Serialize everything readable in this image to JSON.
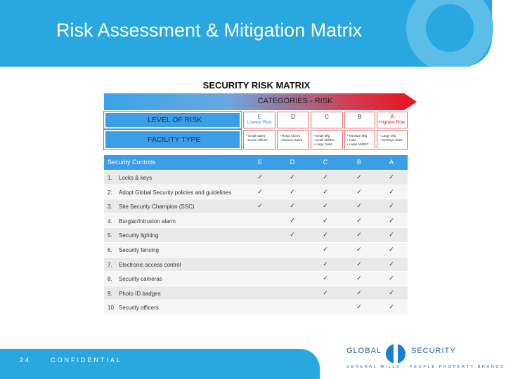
{
  "title": "Risk Assessment & Mitigation Matrix",
  "matrix": {
    "title": "SECURITY RISK MATRIX",
    "categories_label": "CATEGORIES - RISK",
    "levels": {
      "label": "LEVEL OF RISK",
      "columns": [
        {
          "letter": "E",
          "note": "Lowest Risk"
        },
        {
          "letter": "D"
        },
        {
          "letter": "C"
        },
        {
          "letter": "B"
        },
        {
          "letter": "A",
          "note": "Highest Risk"
        }
      ]
    },
    "facility": {
      "label": "FACILITY TYPE",
      "columns": [
        [
          "• Small Sales",
          "• Home Offices"
        ],
        [
          "• Retail Stores",
          "• Medium Sales"
        ],
        [
          "• Small Mfg",
          "• Small Mill/DC",
          "• Large Sales"
        ],
        [
          "• Medium Mfg",
          "• Labs",
          "• Large Mill/DC"
        ],
        [
          "• Large Mfg",
          "• Strategic Sites"
        ]
      ]
    },
    "controls": {
      "header": "Security Controls",
      "columns": [
        "E",
        "D",
        "C",
        "B",
        "A"
      ],
      "rows": [
        {
          "number": "1.",
          "label": "Locks & keys",
          "checks": [
            "✓",
            "✓",
            "✓",
            "✓",
            "✓"
          ]
        },
        {
          "number": "2.",
          "label": "Adopt Global Security policies and guidelines",
          "checks": [
            "✓",
            "✓",
            "✓",
            "✓",
            "✓"
          ]
        },
        {
          "number": "3.",
          "label": "Site Security Champion (SSC)",
          "checks": [
            "✓",
            "✓",
            "✓",
            "✓",
            "✓"
          ]
        },
        {
          "number": "4.",
          "label": "Burglar/Intrusion alarm",
          "checks": [
            null,
            "✓",
            "✓",
            "✓",
            "✓"
          ]
        },
        {
          "number": "5.",
          "label": "Security lighting",
          "checks": [
            null,
            "✓",
            "✓",
            "✓",
            "✓"
          ]
        },
        {
          "number": "6.",
          "label": "Security fencing",
          "checks": [
            null,
            null,
            "✓",
            "✓",
            "✓"
          ]
        },
        {
          "number": "7.",
          "label": "Electronic access control",
          "checks": [
            null,
            null,
            "✓",
            "✓",
            "✓"
          ]
        },
        {
          "number": "8.",
          "label": "Security cameras",
          "checks": [
            null,
            null,
            "✓",
            "✓",
            "✓"
          ]
        },
        {
          "number": "9.",
          "label": "Photo ID badges",
          "checks": [
            null,
            null,
            "✓",
            "✓",
            "✓"
          ]
        },
        {
          "number": "10.",
          "label": "Security officers",
          "checks": [
            null,
            null,
            null,
            "✓",
            "✓"
          ]
        }
      ]
    }
  },
  "footer": {
    "page": "24",
    "confidential": "CONFIDENTIAL",
    "logo": {
      "left": "GLOBAL",
      "right": "SECURITY",
      "tagline": "GENERAL MILLS · PEOPLE PROPERTY BRANDS"
    }
  }
}
